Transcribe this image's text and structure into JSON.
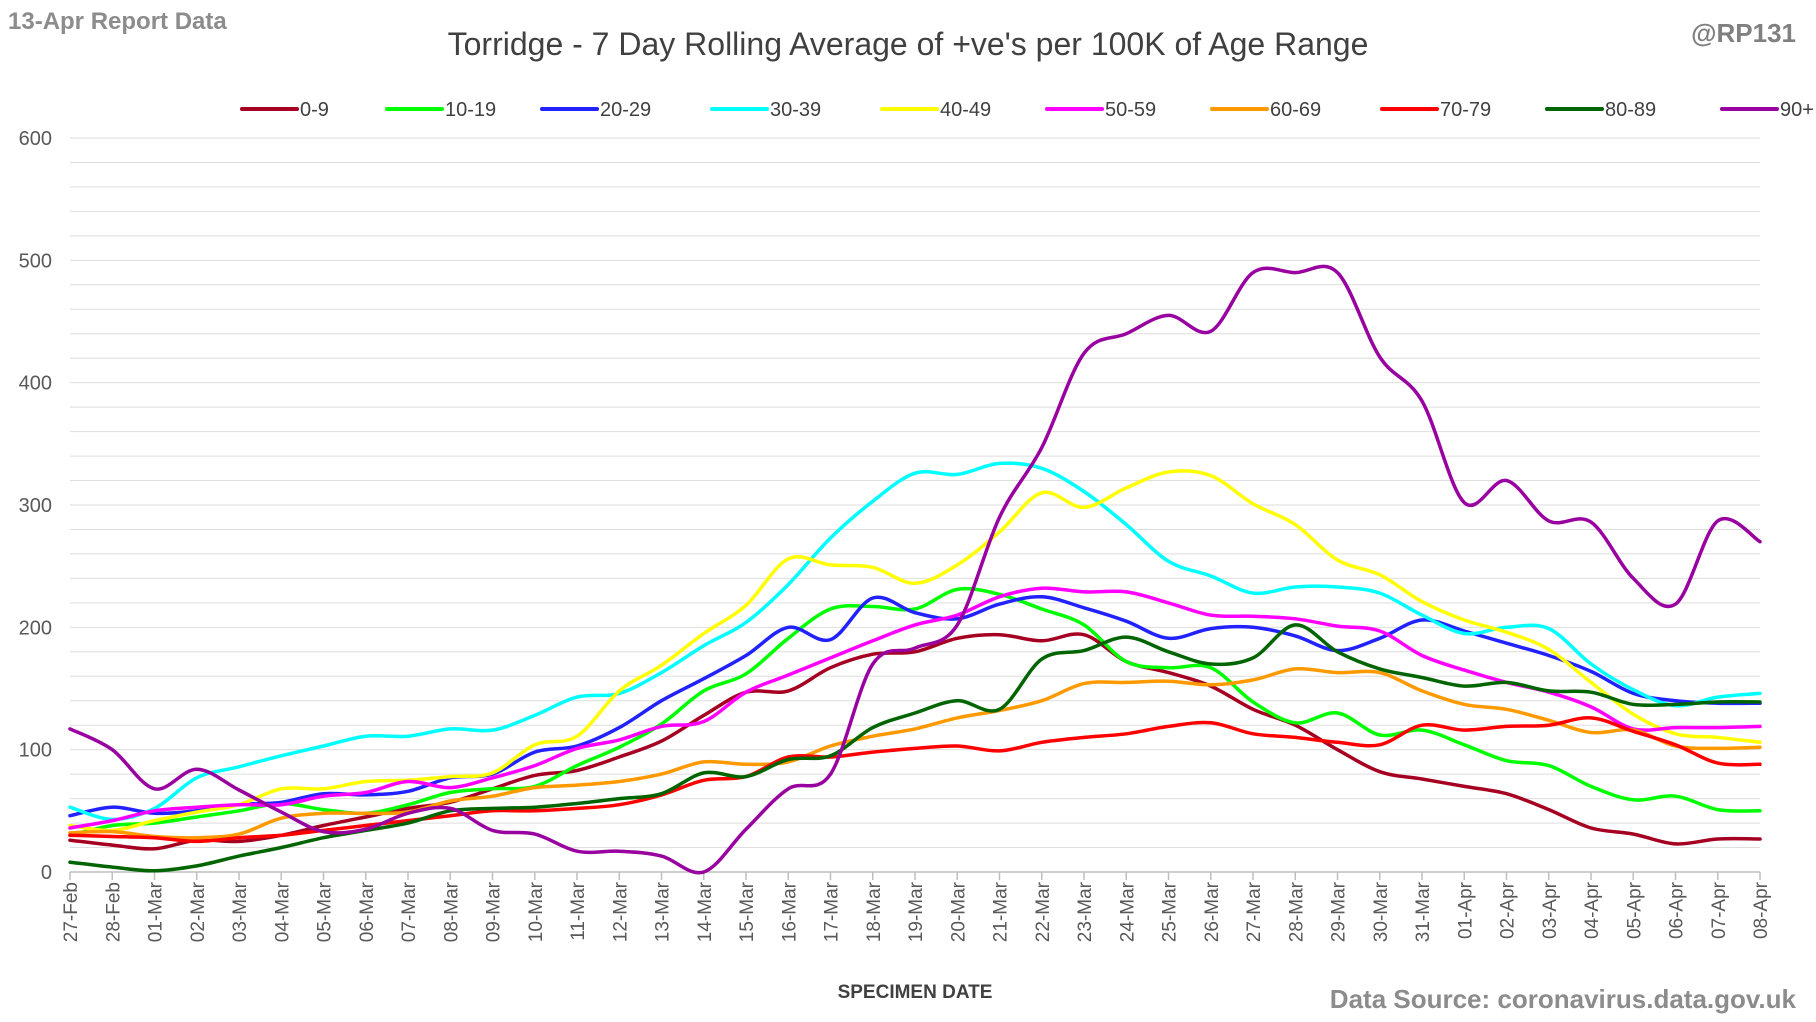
{
  "report_label": "13-Apr Report Data",
  "handle": "@RP131",
  "source": "Data Source: coronavirus.data.gov.uk",
  "chart_data": {
    "type": "line",
    "title": "Torridge - 7 Day Rolling Average of +ve's per 100K of Age Range",
    "xlabel": "SPECIMEN DATE",
    "ylabel": "",
    "ylim": [
      0,
      600
    ],
    "yticks": [
      0,
      100,
      200,
      300,
      400,
      500,
      600
    ],
    "grid": true,
    "legend_position": "top",
    "categories": [
      "27-Feb",
      "28-Feb",
      "01-Mar",
      "02-Mar",
      "03-Mar",
      "04-Mar",
      "05-Mar",
      "06-Mar",
      "07-Mar",
      "08-Mar",
      "09-Mar",
      "10-Mar",
      "11-Mar",
      "12-Mar",
      "13-Mar",
      "14-Mar",
      "15-Mar",
      "16-Mar",
      "17-Mar",
      "18-Mar",
      "19-Mar",
      "20-Mar",
      "21-Mar",
      "22-Mar",
      "23-Mar",
      "24-Mar",
      "25-Mar",
      "26-Mar",
      "27-Mar",
      "28-Mar",
      "29-Mar",
      "30-Mar",
      "31-Mar",
      "01-Apr",
      "02-Apr",
      "03-Apr",
      "04-Apr",
      "05-Apr",
      "06-Apr",
      "07-Apr",
      "08-Apr"
    ],
    "series": [
      {
        "name": "0-9",
        "color": "#a50021",
        "values": [
          26,
          22,
          19,
          26,
          25,
          30,
          38,
          45,
          52,
          57,
          68,
          79,
          83,
          94,
          107,
          128,
          147,
          148,
          167,
          178,
          180,
          191,
          194,
          189,
          194,
          172,
          163,
          152,
          133,
          120,
          100,
          82,
          76,
          70,
          64,
          51,
          36,
          31,
          23,
          27,
          27
        ]
      },
      {
        "name": "10-19",
        "color": "#00ff00",
        "values": [
          30,
          38,
          40,
          45,
          50,
          56,
          51,
          48,
          55,
          65,
          68,
          70,
          87,
          102,
          121,
          148,
          162,
          191,
          215,
          217,
          215,
          231,
          227,
          215,
          202,
          172,
          167,
          167,
          139,
          122,
          130,
          112,
          116,
          104,
          91,
          87,
          70,
          59,
          62,
          51,
          50
        ]
      },
      {
        "name": "20-29",
        "color": "#2222ff",
        "values": [
          46,
          53,
          48,
          50,
          55,
          57,
          64,
          63,
          66,
          77,
          80,
          98,
          103,
          118,
          140,
          158,
          177,
          200,
          190,
          224,
          212,
          207,
          219,
          225,
          216,
          205,
          191,
          199,
          200,
          193,
          181,
          191,
          206,
          197,
          187,
          177,
          164,
          146,
          140,
          138,
          138
        ]
      },
      {
        "name": "30-39",
        "color": "#00ffff",
        "values": [
          53,
          43,
          52,
          77,
          86,
          95,
          103,
          111,
          111,
          117,
          116,
          128,
          143,
          146,
          163,
          185,
          204,
          235,
          273,
          303,
          326,
          325,
          334,
          330,
          311,
          284,
          254,
          242,
          228,
          233,
          233,
          228,
          210,
          195,
          200,
          199,
          170,
          149,
          136,
          143,
          146
        ]
      },
      {
        "name": "40-49",
        "color": "#ffff00",
        "values": [
          38,
          34,
          42,
          49,
          55,
          68,
          68,
          74,
          75,
          78,
          81,
          104,
          111,
          148,
          169,
          195,
          218,
          256,
          251,
          249,
          236,
          251,
          278,
          310,
          298,
          314,
          327,
          324,
          301,
          284,
          255,
          243,
          221,
          206,
          196,
          182,
          155,
          129,
          113,
          110,
          106
        ]
      },
      {
        "name": "50-59",
        "color": "#ff00ff",
        "values": [
          36,
          42,
          50,
          53,
          55,
          55,
          62,
          65,
          74,
          69,
          77,
          87,
          101,
          108,
          119,
          123,
          147,
          161,
          175,
          189,
          202,
          210,
          225,
          232,
          229,
          229,
          220,
          210,
          209,
          207,
          201,
          197,
          177,
          165,
          155,
          147,
          135,
          117,
          118,
          118,
          119
        ]
      },
      {
        "name": "60-69",
        "color": "#ff9900",
        "values": [
          32,
          33,
          29,
          28,
          31,
          44,
          48,
          48,
          49,
          58,
          62,
          69,
          71,
          74,
          80,
          90,
          88,
          90,
          103,
          111,
          117,
          126,
          132,
          140,
          154,
          155,
          156,
          153,
          157,
          166,
          163,
          163,
          148,
          137,
          133,
          124,
          114,
          116,
          103,
          101,
          102
        ]
      },
      {
        "name": "70-79",
        "color": "#ff0000",
        "values": [
          30,
          29,
          28,
          25,
          28,
          30,
          34,
          38,
          42,
          46,
          50,
          50,
          52,
          55,
          63,
          75,
          78,
          94,
          94,
          98,
          101,
          103,
          99,
          106,
          110,
          113,
          119,
          122,
          113,
          110,
          106,
          104,
          120,
          116,
          119,
          120,
          126,
          115,
          104,
          89,
          88
        ]
      },
      {
        "name": "80-89",
        "color": "#006400",
        "values": [
          8,
          4,
          1,
          5,
          13,
          20,
          28,
          34,
          40,
          50,
          52,
          53,
          56,
          60,
          64,
          81,
          78,
          92,
          95,
          118,
          130,
          140,
          133,
          174,
          181,
          192,
          180,
          170,
          175,
          202,
          180,
          166,
          159,
          152,
          155,
          148,
          147,
          137,
          137,
          139,
          139
        ]
      },
      {
        "name": "90+",
        "color": "#9900a0",
        "values": [
          117,
          100,
          68,
          84,
          67,
          49,
          33,
          35,
          48,
          52,
          34,
          31,
          17,
          17,
          13,
          0,
          35,
          68,
          80,
          170,
          183,
          202,
          290,
          347,
          424,
          440,
          455,
          442,
          490,
          490,
          490,
          421,
          385,
          302,
          320,
          287,
          286,
          240,
          219,
          287,
          270
        ]
      }
    ]
  }
}
